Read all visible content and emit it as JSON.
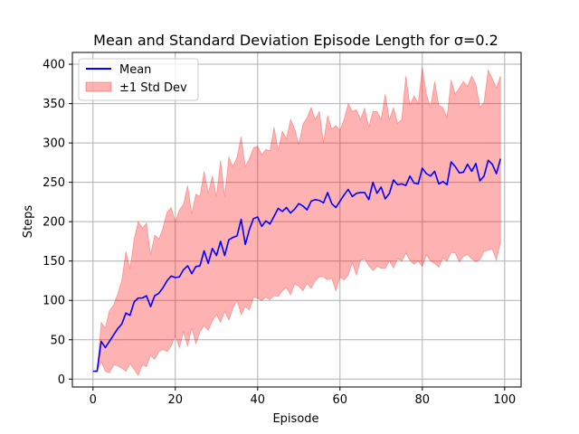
{
  "chart_data": {
    "type": "line",
    "title": "Mean and Standard Deviation Episode Length for σ=0.2",
    "xlabel": "Episode",
    "ylabel": "Steps",
    "xlim": [
      -5,
      104
    ],
    "ylim": [
      -10,
      415
    ],
    "xticks": [
      0,
      20,
      40,
      60,
      80,
      100
    ],
    "yticks": [
      0,
      50,
      100,
      150,
      200,
      250,
      300,
      350,
      400
    ],
    "grid": true,
    "legend_position": "top-left",
    "colors": {
      "mean": "#0000ff",
      "band": "#ff0000",
      "grid": "#b0b0b0"
    },
    "series": [
      {
        "name": "Mean",
        "x": [
          0,
          1,
          2,
          3,
          4,
          5,
          6,
          7,
          8,
          9,
          10,
          11,
          12,
          13,
          14,
          15,
          16,
          17,
          18,
          19,
          20,
          21,
          22,
          23,
          24,
          25,
          26,
          27,
          28,
          29,
          30,
          31,
          32,
          33,
          34,
          35,
          36,
          37,
          38,
          39,
          40,
          41,
          42,
          43,
          44,
          45,
          46,
          47,
          48,
          49,
          50,
          51,
          52,
          53,
          54,
          55,
          56,
          57,
          58,
          59,
          60,
          61,
          62,
          63,
          64,
          65,
          66,
          67,
          68,
          69,
          70,
          71,
          72,
          73,
          74,
          75,
          76,
          77,
          78,
          79,
          80,
          81,
          82,
          83,
          84,
          85,
          86,
          87,
          88,
          89,
          90,
          91,
          92,
          93,
          94,
          95,
          96,
          97,
          98,
          99
        ],
        "values": [
          10,
          10,
          48,
          40,
          48,
          56,
          64,
          70,
          84,
          81,
          98,
          103,
          103,
          106,
          92,
          106,
          109,
          116,
          125,
          131,
          129,
          130,
          139,
          144,
          134,
          143,
          144,
          163,
          147,
          166,
          157,
          175,
          157,
          177,
          180,
          182,
          203,
          171,
          190,
          204,
          206,
          194,
          201,
          197,
          207,
          217,
          213,
          218,
          211,
          216,
          223,
          220,
          215,
          226,
          228,
          227,
          224,
          237,
          223,
          218,
          226,
          234,
          241,
          232,
          236,
          237,
          237,
          228,
          250,
          236,
          244,
          229,
          236,
          253,
          247,
          248,
          246,
          258,
          249,
          248,
          268,
          261,
          258,
          264,
          248,
          251,
          247,
          276,
          270,
          262,
          263,
          273,
          264,
          274,
          252,
          258,
          278,
          273,
          261,
          280
        ]
      },
      {
        "name": "±1 Std Dev",
        "x": [
          0,
          1,
          2,
          3,
          4,
          5,
          6,
          7,
          8,
          9,
          10,
          11,
          12,
          13,
          14,
          15,
          16,
          17,
          18,
          19,
          20,
          21,
          22,
          23,
          24,
          25,
          26,
          27,
          28,
          29,
          30,
          31,
          32,
          33,
          34,
          35,
          36,
          37,
          38,
          39,
          40,
          41,
          42,
          43,
          44,
          45,
          46,
          47,
          48,
          49,
          50,
          51,
          52,
          53,
          54,
          55,
          56,
          57,
          58,
          59,
          60,
          61,
          62,
          63,
          64,
          65,
          66,
          67,
          68,
          69,
          70,
          71,
          72,
          73,
          74,
          75,
          76,
          77,
          78,
          79,
          80,
          81,
          82,
          83,
          84,
          85,
          86,
          87,
          88,
          89,
          90,
          91,
          92,
          93,
          94,
          95,
          96,
          97,
          98,
          99
        ],
        "lower": [
          10,
          10,
          22,
          10,
          8,
          18,
          17,
          14,
          10,
          20,
          12,
          5,
          18,
          16,
          30,
          25,
          35,
          38,
          35,
          42,
          55,
          40,
          60,
          42,
          65,
          45,
          60,
          68,
          62,
          74,
          82,
          72,
          86,
          75,
          90,
          100,
          82,
          92,
          88,
          104,
          103,
          100,
          104,
          101,
          106,
          105,
          112,
          116,
          107,
          121,
          118,
          112,
          122,
          115,
          125,
          130,
          130,
          126,
          128,
          112,
          130,
          126,
          132,
          148,
          132,
          151,
          153,
          144,
          138,
          143,
          141,
          141,
          150,
          141,
          153,
          150,
          160,
          151,
          146,
          150,
          143,
          158,
          150,
          147,
          142,
          154,
          150,
          161,
          160,
          149,
          156,
          158,
          153,
          149,
          152,
          162,
          164,
          165,
          151,
          174
        ],
        "upper": [
          10,
          10,
          72,
          65,
          87,
          94,
          108,
          125,
          162,
          140,
          178,
          200,
          192,
          198,
          158,
          183,
          178,
          192,
          212,
          218,
          200,
          215,
          222,
          246,
          210,
          235,
          232,
          264,
          236,
          258,
          232,
          278,
          232,
          282,
          270,
          282,
          308,
          270,
          280,
          294,
          296,
          285,
          292,
          290,
          320,
          290,
          315,
          305,
          330,
          318,
          298,
          324,
          332,
          345,
          330,
          340,
          300,
          335,
          318,
          322,
          316,
          330,
          350,
          340,
          342,
          330,
          344,
          320,
          340,
          340,
          330,
          362,
          330,
          345,
          325,
          330,
          385,
          348,
          360,
          350,
          396,
          362,
          345,
          378,
          348,
          345,
          332,
          380,
          362,
          370,
          378,
          372,
          385,
          375,
          345,
          352,
          393,
          382,
          370,
          385
        ]
      }
    ]
  }
}
